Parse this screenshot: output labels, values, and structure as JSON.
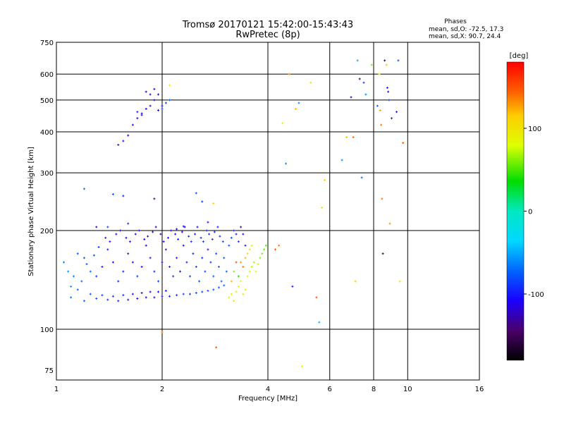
{
  "header": {
    "title_line1": "Tromsø 20170121 15:42:00-15:43:43",
    "title_line2": "RwPretec (8p)"
  },
  "stats": {
    "title": "Phases",
    "line1": "mean, sd,O: -72.5, 17.3",
    "line2": "mean, sd,X:  90.7, 24.4"
  },
  "colorbar": {
    "label": "[deg]",
    "tick_labels": [
      "100",
      "0",
      "-100"
    ],
    "ticks": [
      100,
      0,
      -100
    ],
    "range": [
      -180,
      180
    ]
  },
  "chart_data": {
    "type": "scatter",
    "title": "Tromsø 20170121 15:42:00-15:43:43",
    "subtitle": "RwPretec (8p)",
    "xlabel": "Frequency [MHz]",
    "ylabel": "Stationary phase Virtual Height [km]",
    "x_scale": "log",
    "y_scale": "log",
    "xlim": [
      1,
      16
    ],
    "ylim": [
      70,
      750
    ],
    "x_ticks": [
      1,
      2,
      4,
      6,
      8,
      10,
      16
    ],
    "x_tick_labels": [
      "1",
      "2",
      "4",
      "6",
      "8",
      "10",
      "16"
    ],
    "y_ticks": [
      75,
      100,
      200,
      300,
      400,
      500,
      600,
      750
    ],
    "y_tick_labels": [
      "75",
      "100",
      "200",
      "300",
      "400",
      "500",
      "600",
      "750"
    ],
    "grid": true,
    "colorbar_label": "[deg]",
    "marker": "cross",
    "points": [
      [
        1.15,
        170,
        -80
      ],
      [
        1.2,
        165,
        -75
      ],
      [
        1.25,
        150,
        -70
      ],
      [
        1.1,
        135,
        -60
      ],
      [
        1.3,
        145,
        -95
      ],
      [
        1.35,
        155,
        -105
      ],
      [
        1.4,
        175,
        -100
      ],
      [
        1.45,
        160,
        -110
      ],
      [
        1.5,
        140,
        -95
      ],
      [
        1.55,
        150,
        -100
      ],
      [
        1.6,
        170,
        -115
      ],
      [
        1.65,
        160,
        -105
      ],
      [
        1.7,
        145,
        -90
      ],
      [
        1.75,
        155,
        -110
      ],
      [
        1.8,
        180,
        -120
      ],
      [
        1.85,
        165,
        -100
      ],
      [
        1.9,
        150,
        -95
      ],
      [
        1.95,
        140,
        -85
      ],
      [
        2.0,
        160,
        -110
      ],
      [
        2.05,
        175,
        -100
      ],
      [
        2.1,
        155,
        -95
      ],
      [
        2.15,
        145,
        -90
      ],
      [
        2.2,
        165,
        -100
      ],
      [
        2.25,
        150,
        -105
      ],
      [
        2.3,
        180,
        -110
      ],
      [
        2.35,
        160,
        -95
      ],
      [
        2.4,
        145,
        -85
      ],
      [
        2.45,
        170,
        -100
      ],
      [
        2.5,
        155,
        -90
      ],
      [
        2.55,
        140,
        -80
      ],
      [
        2.6,
        165,
        -95
      ],
      [
        2.65,
        150,
        -85
      ],
      [
        2.7,
        175,
        -100
      ],
      [
        2.75,
        160,
        -90
      ],
      [
        2.8,
        145,
        -75
      ],
      [
        2.85,
        170,
        -85
      ],
      [
        2.9,
        155,
        -80
      ],
      [
        2.95,
        140,
        -70
      ],
      [
        3.0,
        165,
        -80
      ],
      [
        3.05,
        150,
        -75
      ],
      [
        1.1,
        125,
        -70
      ],
      [
        1.2,
        122,
        -75
      ],
      [
        1.3,
        124,
        -80
      ],
      [
        1.4,
        123,
        -90
      ],
      [
        1.5,
        122,
        -95
      ],
      [
        1.6,
        123,
        -100
      ],
      [
        1.7,
        124,
        -105
      ],
      [
        1.8,
        125,
        -110
      ],
      [
        1.9,
        125,
        -105
      ],
      [
        2.0,
        126,
        -100
      ],
      [
        2.1,
        126,
        -95
      ],
      [
        2.2,
        127,
        -95
      ],
      [
        2.3,
        128,
        -90
      ],
      [
        2.4,
        128,
        -90
      ],
      [
        2.5,
        129,
        -85
      ],
      [
        2.6,
        130,
        -85
      ],
      [
        2.7,
        131,
        -80
      ],
      [
        2.8,
        132,
        -80
      ],
      [
        2.9,
        134,
        -75
      ],
      [
        3.0,
        136,
        -70
      ],
      [
        1.15,
        132,
        -75
      ],
      [
        1.25,
        128,
        -80
      ],
      [
        1.35,
        127,
        -85
      ],
      [
        1.45,
        126,
        -90
      ],
      [
        1.55,
        127,
        -95
      ],
      [
        1.65,
        128,
        -105
      ],
      [
        1.75,
        129,
        -110
      ],
      [
        1.85,
        130,
        -110
      ],
      [
        1.95,
        130,
        -105
      ],
      [
        2.05,
        131,
        -100
      ],
      [
        1.05,
        160,
        -65
      ],
      [
        1.08,
        150,
        -60
      ],
      [
        1.12,
        145,
        -65
      ],
      [
        1.18,
        140,
        -70
      ],
      [
        1.22,
        158,
        -75
      ],
      [
        1.28,
        168,
        -80
      ],
      [
        1.32,
        178,
        -90
      ],
      [
        1.38,
        190,
        -100
      ],
      [
        1.42,
        185,
        -105
      ],
      [
        1.48,
        195,
        -115
      ],
      [
        1.52,
        200,
        -120
      ],
      [
        1.58,
        190,
        -110
      ],
      [
        1.62,
        185,
        -105
      ],
      [
        1.68,
        195,
        -110
      ],
      [
        1.72,
        200,
        -115
      ],
      [
        1.78,
        188,
        -110
      ],
      [
        1.82,
        192,
        -120
      ],
      [
        1.88,
        198,
        -125
      ],
      [
        1.92,
        205,
        -120
      ],
      [
        1.98,
        195,
        -115
      ],
      [
        2.02,
        185,
        -110
      ],
      [
        2.08,
        190,
        -105
      ],
      [
        2.12,
        200,
        -110
      ],
      [
        2.18,
        195,
        -105
      ],
      [
        2.22,
        188,
        -100
      ],
      [
        2.28,
        198,
        -110
      ],
      [
        2.32,
        205,
        -115
      ],
      [
        2.38,
        192,
        -100
      ],
      [
        2.42,
        185,
        -95
      ],
      [
        2.48,
        195,
        -100
      ],
      [
        2.52,
        205,
        -105
      ],
      [
        2.58,
        190,
        -95
      ],
      [
        2.62,
        185,
        -90
      ],
      [
        2.68,
        200,
        -100
      ],
      [
        2.72,
        195,
        -95
      ],
      [
        2.78,
        188,
        -90
      ],
      [
        2.82,
        198,
        -95
      ],
      [
        2.88,
        205,
        -100
      ],
      [
        2.92,
        192,
        -90
      ],
      [
        2.98,
        185,
        -85
      ],
      [
        3.1,
        180,
        -80
      ],
      [
        3.15,
        190,
        -85
      ],
      [
        3.2,
        200,
        -95
      ],
      [
        3.25,
        195,
        -100
      ],
      [
        3.3,
        185,
        -95
      ],
      [
        3.35,
        205,
        -110
      ],
      [
        3.4,
        195,
        -105
      ],
      [
        3.45,
        180,
        -100
      ],
      [
        3.1,
        125,
        90
      ],
      [
        3.15,
        128,
        95
      ],
      [
        3.2,
        122,
        100
      ],
      [
        3.25,
        130,
        90
      ],
      [
        3.3,
        135,
        85
      ],
      [
        3.35,
        140,
        80
      ],
      [
        3.4,
        128,
        95
      ],
      [
        3.45,
        132,
        90
      ],
      [
        3.5,
        145,
        85
      ],
      [
        3.55,
        150,
        75
      ],
      [
        3.6,
        155,
        70
      ],
      [
        3.65,
        160,
        65
      ],
      [
        3.7,
        150,
        80
      ],
      [
        3.75,
        158,
        75
      ],
      [
        3.8,
        165,
        65
      ],
      [
        3.85,
        170,
        60
      ],
      [
        3.9,
        175,
        55
      ],
      [
        3.95,
        180,
        50
      ],
      [
        3.3,
        145,
        40
      ],
      [
        3.2,
        150,
        60
      ],
      [
        3.35,
        160,
        130
      ],
      [
        3.4,
        155,
        140
      ],
      [
        3.45,
        165,
        120
      ],
      [
        3.5,
        170,
        110
      ],
      [
        3.55,
        175,
        100
      ],
      [
        3.25,
        160,
        150
      ],
      [
        3.15,
        140,
        120
      ],
      [
        3.6,
        180,
        90
      ],
      [
        1.5,
        365,
        -100
      ],
      [
        1.55,
        375,
        -105
      ],
      [
        1.6,
        390,
        -110
      ],
      [
        1.65,
        420,
        -115
      ],
      [
        1.7,
        440,
        -120
      ],
      [
        1.75,
        455,
        -115
      ],
      [
        1.8,
        470,
        -110
      ],
      [
        1.85,
        480,
        -120
      ],
      [
        1.9,
        500,
        -125
      ],
      [
        1.95,
        520,
        -130
      ],
      [
        1.8,
        530,
        -110
      ],
      [
        1.85,
        520,
        -115
      ],
      [
        1.9,
        540,
        -120
      ],
      [
        1.75,
        450,
        -105
      ],
      [
        1.7,
        460,
        -100
      ],
      [
        1.95,
        465,
        -110
      ],
      [
        2.0,
        480,
        -105
      ],
      [
        2.05,
        490,
        -90
      ],
      [
        2.1,
        500,
        -70
      ],
      [
        2.0,
        470,
        -80
      ],
      [
        2.1,
        555,
        80
      ],
      [
        1.3,
        205,
        -120
      ],
      [
        1.2,
        268,
        -70
      ],
      [
        1.45,
        258,
        -80
      ],
      [
        1.55,
        255,
        -100
      ],
      [
        1.9,
        250,
        -140
      ],
      [
        2.2,
        202,
        -120
      ],
      [
        2.6,
        245,
        -90
      ],
      [
        2.5,
        260,
        -80
      ],
      [
        2.8,
        242,
        110
      ],
      [
        1.4,
        205,
        -85
      ],
      [
        1.6,
        210,
        -95
      ],
      [
        2.7,
        212,
        -100
      ],
      [
        2.3,
        206,
        -95
      ],
      [
        2.0,
        98,
        140
      ],
      [
        2.85,
        88,
        150
      ],
      [
        4.2,
        175,
        150
      ],
      [
        4.3,
        180,
        140
      ],
      [
        4.4,
        425,
        80
      ],
      [
        4.5,
        320,
        -60
      ],
      [
        4.6,
        600,
        130
      ],
      [
        4.7,
        135,
        -100
      ],
      [
        4.8,
        470,
        120
      ],
      [
        4.9,
        490,
        -60
      ],
      [
        5.0,
        77,
        90
      ],
      [
        5.3,
        565,
        100
      ],
      [
        5.5,
        125,
        150
      ],
      [
        5.6,
        105,
        -50
      ],
      [
        5.7,
        235,
        100
      ],
      [
        5.8,
        285,
        110
      ],
      [
        6.5,
        328,
        -60
      ],
      [
        6.7,
        385,
        120
      ],
      [
        6.9,
        510,
        -120
      ],
      [
        7.0,
        385,
        150
      ],
      [
        7.1,
        140,
        110
      ],
      [
        7.2,
        660,
        -50
      ],
      [
        7.3,
        580,
        -150
      ],
      [
        7.4,
        290,
        -70
      ],
      [
        7.5,
        565,
        -90
      ],
      [
        7.6,
        520,
        -60
      ],
      [
        8.3,
        600,
        80
      ],
      [
        8.35,
        465,
        130
      ],
      [
        8.4,
        420,
        140
      ],
      [
        8.45,
        250,
        140
      ],
      [
        8.5,
        170,
        -160
      ],
      [
        8.6,
        660,
        -150
      ],
      [
        8.7,
        640,
        120
      ],
      [
        8.75,
        545,
        -100
      ],
      [
        8.8,
        530,
        -120
      ],
      [
        8.85,
        500,
        -80
      ],
      [
        8.9,
        210,
        130
      ],
      [
        9.0,
        440,
        -100
      ],
      [
        9.3,
        460,
        -110
      ],
      [
        9.4,
        660,
        -80
      ],
      [
        9.5,
        140,
        100
      ],
      [
        9.7,
        370,
        150
      ],
      [
        7.9,
        640,
        60
      ],
      [
        8.2,
        480,
        -80
      ]
    ]
  }
}
